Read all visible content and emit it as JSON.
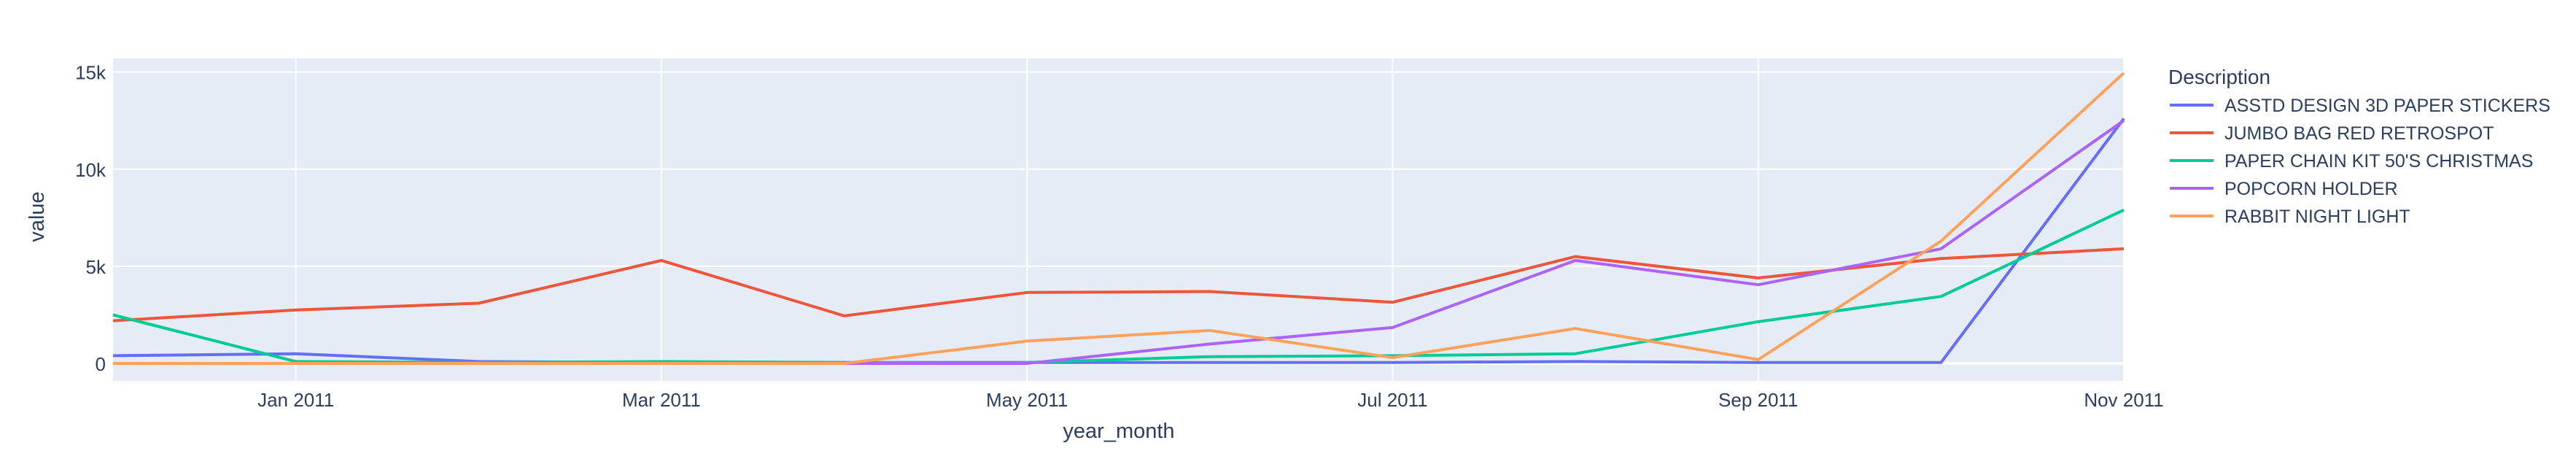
{
  "chart_data": {
    "type": "line",
    "xlabel": "year_month",
    "ylabel": "value",
    "legend_title": "Description",
    "legend_position": "right",
    "grid": true,
    "background_color": "#E5ECF6",
    "x": [
      "2010-12",
      "2011-01",
      "2011-02",
      "2011-03",
      "2011-04",
      "2011-05",
      "2011-06",
      "2011-07",
      "2011-08",
      "2011-09",
      "2011-10",
      "2011-11"
    ],
    "x_tick_labels": [
      {
        "x": "2011-01",
        "label": "Jan 2011"
      },
      {
        "x": "2011-03",
        "label": "Mar 2011"
      },
      {
        "x": "2011-05",
        "label": "May 2011"
      },
      {
        "x": "2011-07",
        "label": "Jul 2011"
      },
      {
        "x": "2011-09",
        "label": "Sep 2011"
      },
      {
        "x": "2011-11",
        "label": "Nov 2011"
      }
    ],
    "y_ticks": [
      0,
      5000,
      10000,
      15000
    ],
    "y_tick_labels": [
      "0",
      "5k",
      "10k",
      "15k"
    ],
    "ylim": [
      -900,
      15700
    ],
    "series": [
      {
        "name": "ASSTD DESIGN 3D PAPER STICKERS",
        "color": "#636efa",
        "values": [
          400,
          500,
          100,
          50,
          50,
          50,
          50,
          50,
          100,
          50,
          50,
          12600
        ]
      },
      {
        "name": "JUMBO BAG RED RETROSPOT",
        "color": "#EF553B",
        "values": [
          2200,
          2750,
          3100,
          5300,
          2450,
          3650,
          3700,
          3150,
          5500,
          4400,
          5400,
          5900
        ]
      },
      {
        "name": "PAPER CHAIN KIT 50'S CHRISTMAS",
        "color": "#00cc96",
        "values": [
          2500,
          100,
          50,
          100,
          50,
          50,
          350,
          400,
          500,
          2150,
          3450,
          7900
        ]
      },
      {
        "name": "POPCORN HOLDER",
        "color": "#ab63fa",
        "values": [
          0,
          0,
          0,
          0,
          0,
          0,
          1000,
          1850,
          5300,
          4050,
          5900,
          12500
        ]
      },
      {
        "name": "RABBIT NIGHT LIGHT",
        "color": "#FFA15A",
        "values": [
          0,
          0,
          0,
          0,
          0,
          1150,
          1700,
          300,
          1800,
          200,
          6300,
          14950
        ]
      }
    ]
  }
}
